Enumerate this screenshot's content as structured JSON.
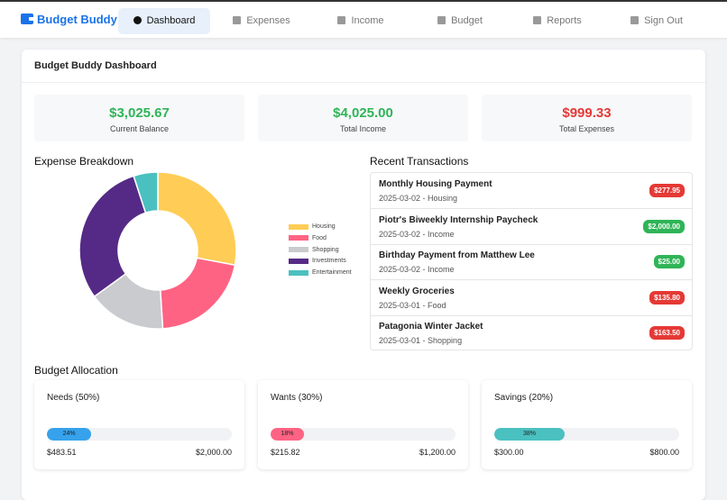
{
  "nav": {
    "brand": "Budget Buddy",
    "items": [
      "Dashboard",
      "Expenses",
      "Income",
      "Budget",
      "Reports",
      "Sign Out"
    ]
  },
  "dashboard": {
    "title": "Budget Buddy Dashboard",
    "stats": [
      {
        "value": "$3,025.67",
        "label": "Current Balance",
        "color": "#2fb457"
      },
      {
        "value": "$4,025.00",
        "label": "Total Income",
        "color": "#2fb457"
      },
      {
        "value": "$999.33",
        "label": "Total Expenses",
        "color": "#e53935"
      }
    ]
  },
  "chart_data": {
    "type": "pie",
    "title": "Expense Breakdown",
    "categories": [
      "Housing",
      "Food",
      "Shopping",
      "Investments",
      "Entertainment"
    ],
    "values": [
      28,
      21,
      16,
      30,
      5
    ],
    "colors": [
      "#ffcd56",
      "#ff6384",
      "#c9cbcf",
      "#552a86",
      "#4bc0c0"
    ]
  },
  "transactions": {
    "title": "Recent Transactions",
    "items": [
      {
        "title": "Monthly Housing Payment",
        "meta": "2025-03-02 - Housing",
        "amount": "$277.95",
        "color": "#e53935"
      },
      {
        "title": "Piotr's Biweekly Internship Paycheck",
        "meta": "2025-03-02 - Income",
        "amount": "$2,000.00",
        "color": "#2fb457"
      },
      {
        "title": "Birthday Payment from Matthew Lee",
        "meta": "2025-03-02 - Income",
        "amount": "$25.00",
        "color": "#2fb457"
      },
      {
        "title": "Weekly Groceries",
        "meta": "2025-03-01 - Food",
        "amount": "$135.80",
        "color": "#e53935"
      },
      {
        "title": "Patagonia Winter Jacket",
        "meta": "2025-03-01 - Shopping",
        "amount": "$163.50",
        "color": "#e53935"
      }
    ]
  },
  "budget": {
    "title": "Budget Allocation",
    "cards": [
      {
        "name": "Needs (50%)",
        "bar": {
          "value": 24,
          "label": "24%"
        },
        "color": "#36a2eb",
        "spent": "$483.51",
        "total": "$2,000.00"
      },
      {
        "name": "Wants (30%)",
        "bar": {
          "value": 18,
          "label": "18%"
        },
        "color": "#ff6384",
        "spent": "$215.82",
        "total": "$1,200.00"
      },
      {
        "name": "Savings (20%)",
        "bar": {
          "value": 38,
          "label": "38%"
        },
        "color": "#4bc0c0",
        "spent": "$300.00",
        "total": "$800.00"
      }
    ]
  }
}
